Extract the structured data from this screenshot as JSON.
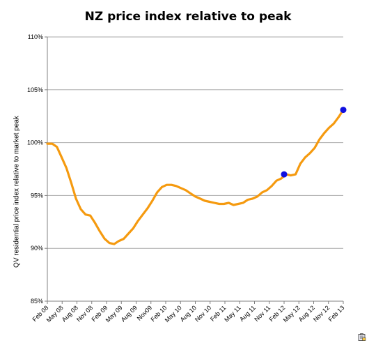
{
  "chart_data": {
    "type": "line",
    "title": "NZ price index relative to peak",
    "ylabel": "QV residential price index relative to market peak",
    "xlabel": "",
    "ylim": [
      85,
      110
    ],
    "y_ticks": [
      "85%",
      "90%",
      "95%",
      "100%",
      "105%",
      "110%"
    ],
    "y_tick_values": [
      85,
      90,
      95,
      100,
      105,
      110
    ],
    "grid": true,
    "x_tick_labels": [
      "Feb 08",
      "May 08",
      "Aug 08",
      "Nov 08",
      "Feb 09",
      "May 09",
      "Aug 09",
      "Nov09",
      "Feb 10",
      "May 10",
      "Aug 10",
      "Nov 10",
      "Feb 11",
      "May 11",
      "Aug 11",
      "Nov 11",
      "Feb 12",
      "May 12",
      "Aug 12",
      "Nov 12",
      "Feb 13"
    ],
    "line_color": "#f59a0f",
    "marker_color": "#1010e0",
    "series": [
      {
        "values": [
          99.9,
          99.9,
          99.6,
          98.6,
          97.6,
          96.2,
          94.7,
          93.7,
          93.2,
          93.1,
          92.4,
          91.6,
          90.9,
          90.5,
          90.4,
          90.7,
          90.9,
          91.4,
          91.9,
          92.6,
          93.2,
          93.8,
          94.5,
          95.3,
          95.8,
          96.0,
          96.0,
          95.9,
          95.7,
          95.5,
          95.2,
          94.9,
          94.7,
          94.5,
          94.4,
          94.3,
          94.2,
          94.2,
          94.3,
          94.1,
          94.2,
          94.3,
          94.6,
          94.7,
          94.9,
          95.3,
          95.5,
          95.9,
          96.4,
          96.6,
          97.0,
          96.9,
          97.0,
          98.0,
          98.6,
          99.0,
          99.5,
          100.3,
          100.9,
          101.4,
          101.8,
          102.4,
          103.1
        ]
      }
    ],
    "highlighted_points": [
      {
        "x": "Feb 12",
        "y": 97.0
      },
      {
        "x": "Feb 13",
        "y": 103.1
      }
    ]
  }
}
